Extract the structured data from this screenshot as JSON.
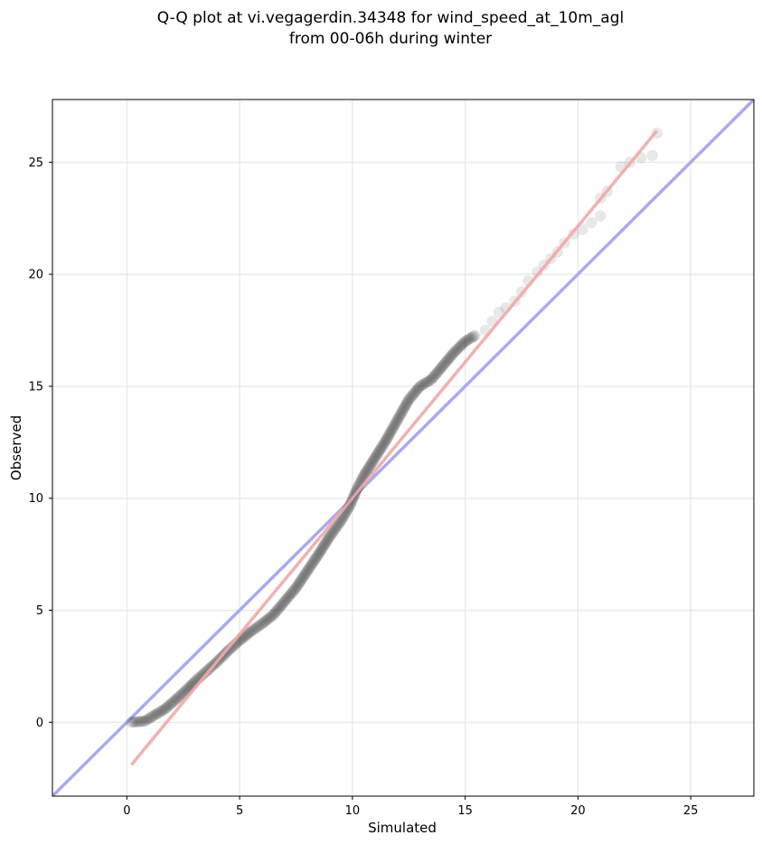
{
  "chart_data": {
    "type": "scatter",
    "title": "Q-Q plot at vi.vegagerdin.34348 for wind_speed_at_10m_agl",
    "subtitle": "from 00-06h during winter",
    "xlabel": "Simulated",
    "ylabel": "Observed",
    "xlim": [
      -3.3,
      27.8
    ],
    "ylim": [
      -3.3,
      27.8
    ],
    "xticks": [
      0,
      5,
      10,
      15,
      20,
      25
    ],
    "yticks": [
      0,
      5,
      10,
      15,
      20,
      25
    ],
    "xtick_labels": [
      "0",
      "5",
      "10",
      "15",
      "20",
      "25"
    ],
    "ytick_labels": [
      "0",
      "5",
      "10",
      "15",
      "20",
      "25"
    ],
    "grid": true,
    "point_color": "#000000",
    "reference_line": {
      "slope": 1,
      "intercept": 0,
      "color": "#aaaaf0"
    },
    "fit_line": {
      "x": [
        0.2,
        23.5
      ],
      "y": [
        -1.9,
        26.4
      ],
      "color": "#f0a8a8"
    },
    "quantile_path": [
      [
        0.2,
        0.0
      ],
      [
        0.8,
        0.05
      ],
      [
        1.2,
        0.3
      ],
      [
        1.7,
        0.6
      ],
      [
        2.1,
        0.95
      ],
      [
        2.6,
        1.4
      ],
      [
        3.0,
        1.8
      ],
      [
        3.5,
        2.25
      ],
      [
        4.0,
        2.7
      ],
      [
        4.5,
        3.2
      ],
      [
        5.0,
        3.65
      ],
      [
        5.5,
        4.05
      ],
      [
        6.0,
        4.4
      ],
      [
        6.5,
        4.8
      ],
      [
        7.0,
        5.4
      ],
      [
        7.5,
        6.0
      ],
      [
        8.0,
        6.75
      ],
      [
        8.5,
        7.5
      ],
      [
        9.0,
        8.3
      ],
      [
        9.5,
        9.0
      ],
      [
        9.9,
        9.7
      ],
      [
        10.2,
        10.4
      ],
      [
        10.5,
        11.0
      ],
      [
        11.0,
        11.8
      ],
      [
        11.5,
        12.6
      ],
      [
        12.0,
        13.5
      ],
      [
        12.5,
        14.4
      ],
      [
        13.0,
        15.0
      ],
      [
        13.5,
        15.3
      ],
      [
        14.0,
        15.9
      ],
      [
        14.5,
        16.5
      ],
      [
        15.0,
        17.0
      ],
      [
        15.5,
        17.3
      ]
    ],
    "tail_points": [
      [
        15.9,
        17.5
      ],
      [
        16.2,
        17.9
      ],
      [
        16.5,
        18.3
      ],
      [
        16.8,
        18.5
      ],
      [
        17.2,
        18.8
      ],
      [
        17.5,
        19.2
      ],
      [
        17.8,
        19.7
      ],
      [
        18.2,
        20.1
      ],
      [
        18.5,
        20.4
      ],
      [
        18.8,
        20.7
      ],
      [
        19.1,
        21.0
      ],
      [
        19.4,
        21.4
      ],
      [
        19.8,
        21.8
      ],
      [
        20.2,
        22.0
      ],
      [
        20.6,
        22.3
      ],
      [
        21.0,
        22.6
      ],
      [
        21.0,
        23.4
      ],
      [
        21.3,
        23.7
      ],
      [
        21.9,
        24.8
      ],
      [
        22.3,
        25.0
      ],
      [
        22.8,
        25.2
      ],
      [
        23.3,
        25.3
      ],
      [
        23.5,
        26.3
      ]
    ]
  }
}
